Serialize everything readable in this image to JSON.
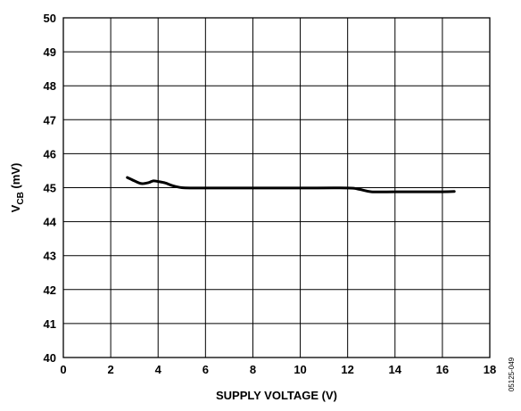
{
  "chart_data": {
    "type": "line",
    "xlabel": "SUPPLY VOLTAGE (V)",
    "ylabel_main": "V",
    "ylabel_sub": "CB",
    "ylabel_unit": " (mV)",
    "xlim": [
      0,
      18
    ],
    "ylim": [
      40,
      50
    ],
    "xticks": [
      "0",
      "2",
      "4",
      "6",
      "8",
      "10",
      "12",
      "14",
      "16",
      "18"
    ],
    "yticks": [
      "40",
      "41",
      "42",
      "43",
      "44",
      "45",
      "46",
      "47",
      "48",
      "49",
      "50"
    ],
    "grid": true,
    "series": [
      {
        "x": [
          2.7,
          3.0,
          3.3,
          3.6,
          3.8,
          4.0,
          4.3,
          4.6,
          5.0,
          5.5,
          6,
          8,
          10,
          12,
          12.5,
          13,
          14,
          15,
          16,
          16.5
        ],
        "y": [
          45.3,
          45.2,
          45.12,
          45.15,
          45.2,
          45.18,
          45.14,
          45.06,
          45.0,
          44.99,
          44.99,
          44.99,
          44.99,
          44.99,
          44.95,
          44.88,
          44.88,
          44.88,
          44.88,
          44.89
        ],
        "color": "#000000"
      }
    ],
    "side_code": "05125-049"
  }
}
